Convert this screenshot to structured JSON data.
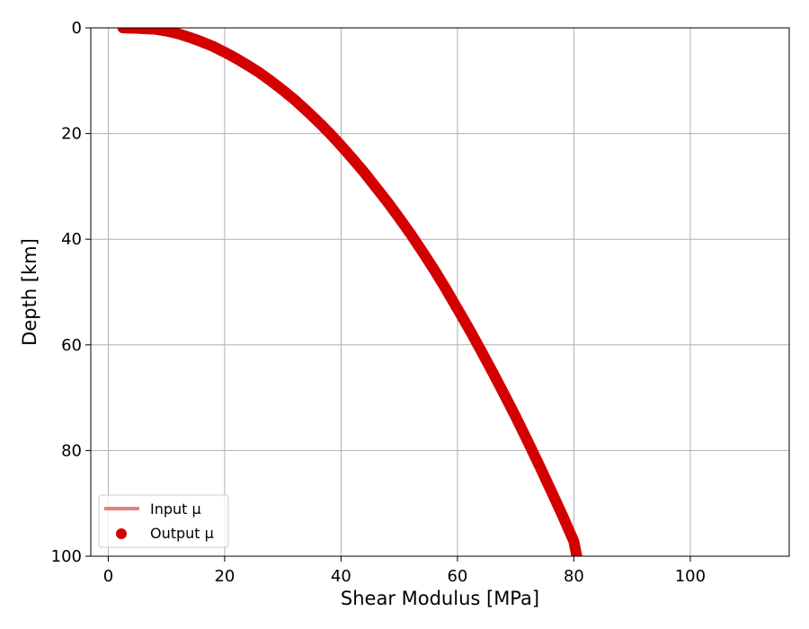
{
  "chart_data": {
    "type": "scatter",
    "title": "",
    "xlabel": "Shear Modulus [MPa]",
    "ylabel": "Depth [km]",
    "xlim": [
      -3,
      117
    ],
    "ylim": [
      100,
      0
    ],
    "xticks": [
      0,
      20,
      40,
      60,
      80,
      100
    ],
    "yticks": [
      0,
      20,
      40,
      60,
      80,
      100
    ],
    "grid": true,
    "legend_position": "lower-left",
    "series": [
      {
        "name": "Input μ",
        "kind": "line",
        "color": "#e88080",
        "points": [
          [
            2.5,
            0
          ],
          [
            10,
            0.6
          ],
          [
            20,
            4.6
          ],
          [
            30,
            11.8
          ],
          [
            40,
            22.3
          ],
          [
            50,
            36
          ],
          [
            60,
            53.2
          ],
          [
            70,
            73.6
          ],
          [
            75,
            85.1
          ],
          [
            80.5,
            100
          ]
        ]
      },
      {
        "name": "Output μ",
        "kind": "scatter",
        "color": "#d40000",
        "points": [
          [
            2.5,
            0
          ],
          [
            5,
            0.1
          ],
          [
            8,
            0.25
          ],
          [
            10,
            0.6
          ],
          [
            12,
            1.1
          ],
          [
            14,
            1.8
          ],
          [
            16,
            2.6
          ],
          [
            18,
            3.5
          ],
          [
            20,
            4.6
          ],
          [
            22,
            5.8
          ],
          [
            24,
            7.1
          ],
          [
            26,
            8.5
          ],
          [
            28,
            10.1
          ],
          [
            30,
            11.8
          ],
          [
            32,
            13.6
          ],
          [
            34,
            15.6
          ],
          [
            36,
            17.7
          ],
          [
            38,
            19.9
          ],
          [
            40,
            22.3
          ],
          [
            42,
            24.8
          ],
          [
            44,
            27.4
          ],
          [
            46,
            30.2
          ],
          [
            48,
            33
          ],
          [
            50,
            36
          ],
          [
            52,
            39.1
          ],
          [
            54,
            42.4
          ],
          [
            56,
            45.8
          ],
          [
            58,
            49.4
          ],
          [
            60,
            53.2
          ],
          [
            62,
            57
          ],
          [
            64,
            61
          ],
          [
            66,
            65.1
          ],
          [
            68,
            69.3
          ],
          [
            70,
            73.6
          ],
          [
            72,
            78.1
          ],
          [
            74,
            82.7
          ],
          [
            76,
            87.4
          ],
          [
            78,
            92.2
          ],
          [
            80,
            97.2
          ],
          [
            80.5,
            100
          ]
        ]
      }
    ]
  }
}
